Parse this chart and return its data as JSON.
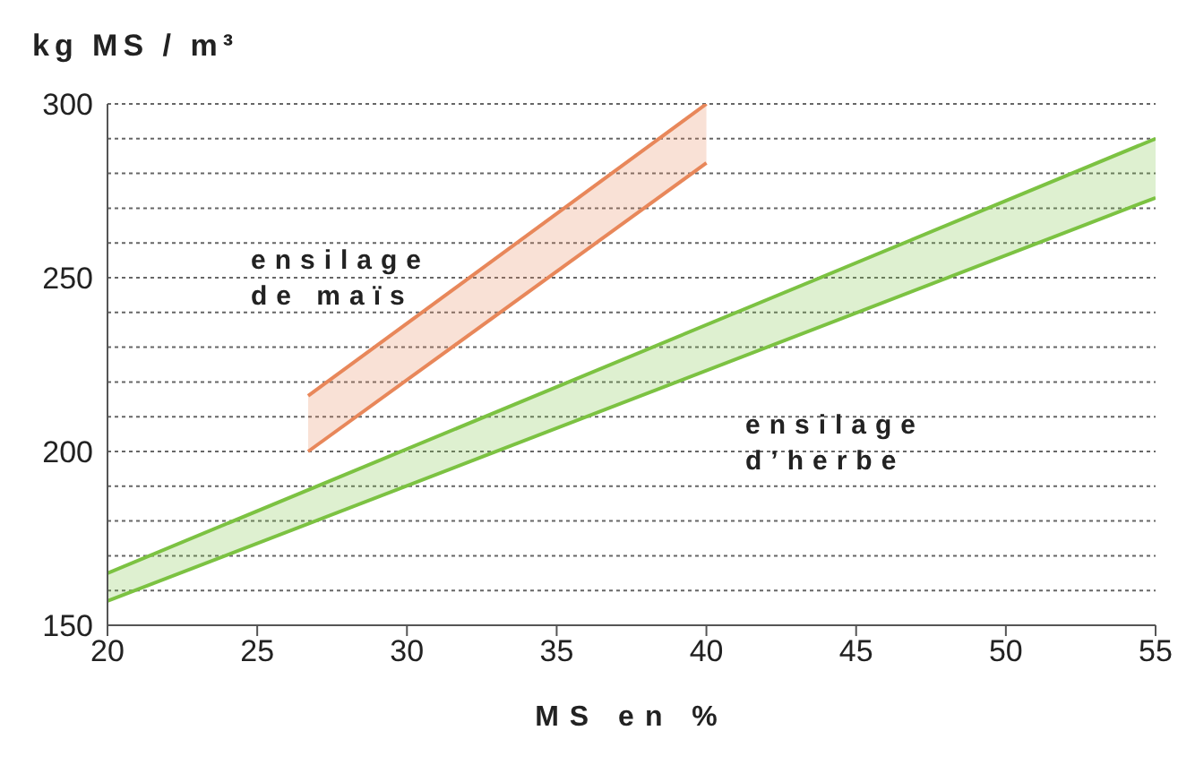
{
  "chart_data": {
    "type": "line",
    "title": "kg MS / m³",
    "xlabel": "MS en %",
    "xlim": [
      20,
      55
    ],
    "xticks": [
      20,
      25,
      30,
      35,
      40,
      45,
      50,
      55
    ],
    "ylim": [
      150,
      300
    ],
    "yticks": [
      150,
      {
        "value": 160,
        "label": null
      },
      {
        "value": 170,
        "label": null
      },
      {
        "value": 180,
        "label": null
      },
      {
        "value": 190,
        "label": null
      },
      200,
      {
        "value": 210,
        "label": null
      },
      {
        "value": 220,
        "label": null
      },
      {
        "value": 230,
        "label": null
      },
      {
        "value": 240,
        "label": null
      },
      250,
      {
        "value": 260,
        "label": null
      },
      {
        "value": 270,
        "label": null
      },
      {
        "value": 280,
        "label": null
      },
      {
        "value": 290,
        "label": null
      },
      300
    ],
    "grid": "y",
    "line_style": "solid",
    "marker": "none",
    "series": [
      {
        "color": "#e8875a",
        "x": [
          26.7,
          40
        ],
        "values": [
          216,
          300
        ],
        "lower": [
          200,
          283
        ],
        "upper": [
          216,
          300
        ]
      },
      {
        "color": "#e8875a",
        "x": [
          26.7,
          40
        ],
        "values": [
          200,
          283
        ]
      },
      {
        "color": "#7cc242",
        "x": [
          20,
          55
        ],
        "values": [
          165,
          290
        ],
        "lower": [
          157,
          273
        ],
        "upper": [
          165,
          290
        ]
      },
      {
        "color": "#7cc242",
        "x": [
          20,
          55
        ],
        "values": [
          157,
          273
        ]
      }
    ],
    "annotations": [
      "ensilage\nde maïs",
      "ensilage\nd’herbe"
    ]
  }
}
